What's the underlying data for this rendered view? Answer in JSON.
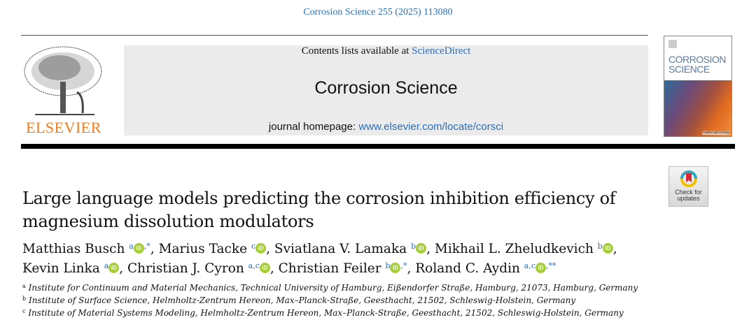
{
  "citation": "Corrosion Science 255 (2025) 113080",
  "header": {
    "contents_prefix": "Contents lists available at ",
    "contents_link": "ScienceDirect",
    "journal": "Corrosion Science",
    "homepage_prefix": "journal homepage: ",
    "homepage_link": "www.elsevier.com/locate/corsci"
  },
  "publisher": "ELSEVIER",
  "cover": {
    "line1": "CORROSION",
    "line2": "SCIENCE",
    "brand": "materialstoday"
  },
  "check_updates": {
    "line1": "Check for",
    "line2": "updates"
  },
  "title": {
    "line1": "Large language models predicting the corrosion inhibition efficiency of",
    "line2": "magnesium dissolution modulators"
  },
  "authors": [
    {
      "name": "Matthias Busch",
      "aff": "a",
      "mark": ",*"
    },
    {
      "name": "Marius Tacke",
      "aff": "c",
      "mark": ""
    },
    {
      "name": "Sviatlana V. Lamaka",
      "aff": "b",
      "mark": ""
    },
    {
      "name": "Mikhail L. Zheludkevich",
      "aff": "b",
      "mark": ""
    },
    {
      "name": "Kevin Linka",
      "aff": "a",
      "mark": ""
    },
    {
      "name": "Christian J. Cyron",
      "aff": "a,c",
      "mark": ""
    },
    {
      "name": "Christian Feiler",
      "aff": "b",
      "mark": ",*"
    },
    {
      "name": "Roland C. Aydin",
      "aff": "a,c",
      "mark": ",**"
    }
  ],
  "orcid_label": "iD",
  "affiliations": [
    {
      "key": "a",
      "text": "Institute for Continuum and Material Mechanics, Technical University of Hamburg, Eißendorfer Straße, Hamburg, 21073, Hamburg, Germany"
    },
    {
      "key": "b",
      "text": "Institute of Surface Science, Helmholtz-Zentrum Hereon, Max–Planck-Straße, Geesthacht, 21502, Schleswig-Holstein, Germany"
    },
    {
      "key": "c",
      "text": "Institute of Material Systems Modeling, Helmholtz-Zentrum Hereon, Max–Planck-Straße, Geesthacht, 21502, Schleswig-Holstein, Germany"
    }
  ]
}
